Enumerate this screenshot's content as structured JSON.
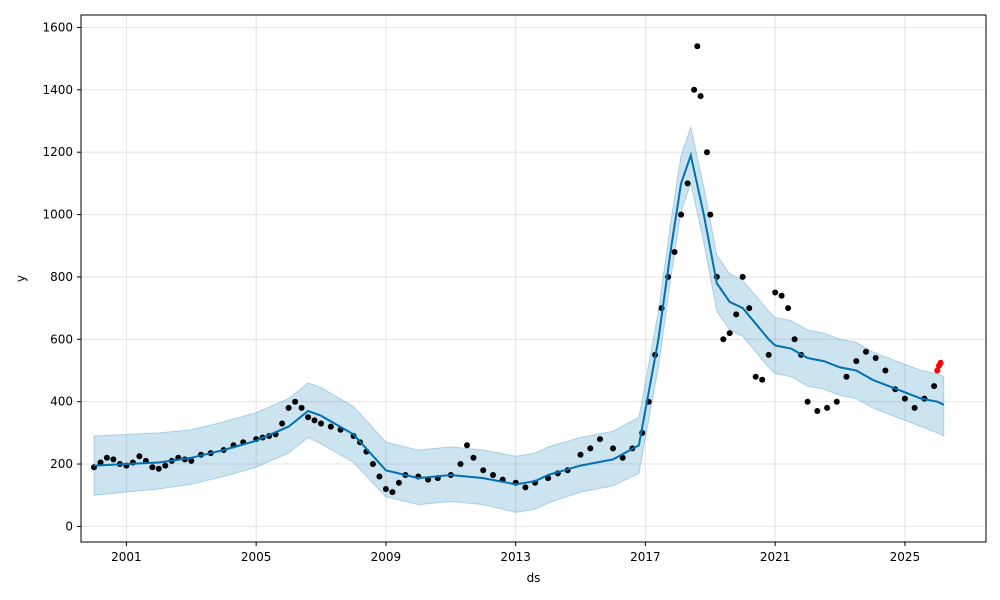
{
  "chart_data": {
    "type": "line",
    "title": "",
    "xlabel": "ds",
    "ylabel": "y",
    "xlim": [
      1999.6,
      2027.5
    ],
    "ylim": [
      -50,
      1640
    ],
    "x_ticks": [
      2001,
      2005,
      2009,
      2013,
      2017,
      2021,
      2025
    ],
    "x_tick_labels": [
      "2001",
      "2005",
      "2009",
      "2013",
      "2017",
      "2021",
      "2025"
    ],
    "y_ticks": [
      0,
      200,
      400,
      600,
      800,
      1000,
      1200,
      1400,
      1600
    ],
    "y_tick_labels": [
      "0",
      "200",
      "400",
      "600",
      "800",
      "1000",
      "1200",
      "1400",
      "1600"
    ],
    "grid": true,
    "colors": {
      "observed": "#000000",
      "forecast": "#0072B2",
      "interval": "#0072B2",
      "recent_observed": "#ff0000"
    },
    "series": [
      {
        "key": "observed",
        "kind": "scatter",
        "points": [
          [
            2000.0,
            190
          ],
          [
            2000.2,
            205
          ],
          [
            2000.4,
            220
          ],
          [
            2000.6,
            215
          ],
          [
            2000.8,
            200
          ],
          [
            2001.0,
            195
          ],
          [
            2001.2,
            205
          ],
          [
            2001.4,
            225
          ],
          [
            2001.6,
            210
          ],
          [
            2001.8,
            190
          ],
          [
            2002.0,
            185
          ],
          [
            2002.2,
            195
          ],
          [
            2002.4,
            210
          ],
          [
            2002.6,
            220
          ],
          [
            2002.8,
            215
          ],
          [
            2003.0,
            210
          ],
          [
            2003.3,
            230
          ],
          [
            2003.6,
            235
          ],
          [
            2004.0,
            245
          ],
          [
            2004.3,
            260
          ],
          [
            2004.6,
            270
          ],
          [
            2005.0,
            280
          ],
          [
            2005.2,
            285
          ],
          [
            2005.4,
            290
          ],
          [
            2005.6,
            295
          ],
          [
            2005.8,
            330
          ],
          [
            2006.0,
            380
          ],
          [
            2006.2,
            400
          ],
          [
            2006.4,
            380
          ],
          [
            2006.6,
            350
          ],
          [
            2006.8,
            340
          ],
          [
            2007.0,
            330
          ],
          [
            2007.3,
            320
          ],
          [
            2007.6,
            310
          ],
          [
            2008.0,
            290
          ],
          [
            2008.2,
            270
          ],
          [
            2008.4,
            240
          ],
          [
            2008.6,
            200
          ],
          [
            2008.8,
            160
          ],
          [
            2009.0,
            120
          ],
          [
            2009.2,
            110
          ],
          [
            2009.4,
            140
          ],
          [
            2009.6,
            165
          ],
          [
            2010.0,
            160
          ],
          [
            2010.3,
            150
          ],
          [
            2010.6,
            155
          ],
          [
            2011.0,
            165
          ],
          [
            2011.3,
            200
          ],
          [
            2011.5,
            260
          ],
          [
            2011.7,
            220
          ],
          [
            2012.0,
            180
          ],
          [
            2012.3,
            165
          ],
          [
            2012.6,
            150
          ],
          [
            2013.0,
            140
          ],
          [
            2013.3,
            125
          ],
          [
            2013.6,
            140
          ],
          [
            2014.0,
            155
          ],
          [
            2014.3,
            170
          ],
          [
            2014.6,
            180
          ],
          [
            2015.0,
            230
          ],
          [
            2015.3,
            250
          ],
          [
            2015.6,
            280
          ],
          [
            2016.0,
            250
          ],
          [
            2016.3,
            220
          ],
          [
            2016.6,
            250
          ],
          [
            2016.9,
            300
          ],
          [
            2017.1,
            400
          ],
          [
            2017.3,
            550
          ],
          [
            2017.5,
            700
          ],
          [
            2017.7,
            800
          ],
          [
            2017.9,
            880
          ],
          [
            2018.1,
            1000
          ],
          [
            2018.3,
            1100
          ],
          [
            2018.5,
            1400
          ],
          [
            2018.6,
            1540
          ],
          [
            2018.7,
            1380
          ],
          [
            2018.9,
            1200
          ],
          [
            2019.0,
            1000
          ],
          [
            2019.2,
            800
          ],
          [
            2019.4,
            600
          ],
          [
            2019.6,
            620
          ],
          [
            2019.8,
            680
          ],
          [
            2020.0,
            800
          ],
          [
            2020.2,
            700
          ],
          [
            2020.4,
            480
          ],
          [
            2020.6,
            470
          ],
          [
            2020.8,
            550
          ],
          [
            2021.0,
            750
          ],
          [
            2021.2,
            740
          ],
          [
            2021.4,
            700
          ],
          [
            2021.6,
            600
          ],
          [
            2021.8,
            550
          ],
          [
            2022.0,
            400
          ],
          [
            2022.3,
            370
          ],
          [
            2022.6,
            380
          ],
          [
            2022.9,
            400
          ],
          [
            2023.2,
            480
          ],
          [
            2023.5,
            530
          ],
          [
            2023.8,
            560
          ],
          [
            2024.1,
            540
          ],
          [
            2024.4,
            500
          ],
          [
            2024.7,
            440
          ],
          [
            2025.0,
            410
          ],
          [
            2025.3,
            380
          ],
          [
            2025.6,
            410
          ],
          [
            2025.9,
            450
          ]
        ]
      },
      {
        "key": "recent_observed",
        "kind": "scatter",
        "points": [
          [
            2026.0,
            500
          ],
          [
            2026.05,
            515
          ],
          [
            2026.1,
            525
          ]
        ]
      },
      {
        "key": "forecast",
        "kind": "line",
        "points": [
          [
            2000.0,
            195
          ],
          [
            2001.0,
            200
          ],
          [
            2002.0,
            205
          ],
          [
            2003.0,
            220
          ],
          [
            2004.0,
            245
          ],
          [
            2005.0,
            275
          ],
          [
            2006.0,
            320
          ],
          [
            2006.6,
            370
          ],
          [
            2007.0,
            355
          ],
          [
            2008.0,
            295
          ],
          [
            2009.0,
            180
          ],
          [
            2010.0,
            155
          ],
          [
            2011.0,
            165
          ],
          [
            2012.0,
            155
          ],
          [
            2013.0,
            135
          ],
          [
            2013.6,
            145
          ],
          [
            2014.0,
            165
          ],
          [
            2015.0,
            195
          ],
          [
            2016.0,
            215
          ],
          [
            2016.8,
            260
          ],
          [
            2017.4,
            600
          ],
          [
            2017.8,
            900
          ],
          [
            2018.1,
            1100
          ],
          [
            2018.4,
            1190
          ],
          [
            2018.8,
            1000
          ],
          [
            2019.2,
            780
          ],
          [
            2019.6,
            720
          ],
          [
            2020.0,
            700
          ],
          [
            2020.4,
            650
          ],
          [
            2020.8,
            600
          ],
          [
            2021.0,
            580
          ],
          [
            2021.5,
            570
          ],
          [
            2022.0,
            540
          ],
          [
            2022.5,
            530
          ],
          [
            2023.0,
            510
          ],
          [
            2023.5,
            500
          ],
          [
            2024.0,
            470
          ],
          [
            2024.5,
            450
          ],
          [
            2025.0,
            430
          ],
          [
            2025.5,
            410
          ],
          [
            2026.0,
            400
          ],
          [
            2026.2,
            390
          ]
        ]
      },
      {
        "key": "interval",
        "kind": "band",
        "lower": [
          [
            2000.0,
            100
          ],
          [
            2001.0,
            110
          ],
          [
            2002.0,
            120
          ],
          [
            2003.0,
            135
          ],
          [
            2004.0,
            160
          ],
          [
            2005.0,
            190
          ],
          [
            2006.0,
            235
          ],
          [
            2006.6,
            285
          ],
          [
            2007.0,
            265
          ],
          [
            2008.0,
            205
          ],
          [
            2009.0,
            95
          ],
          [
            2010.0,
            70
          ],
          [
            2011.0,
            80
          ],
          [
            2012.0,
            70
          ],
          [
            2013.0,
            45
          ],
          [
            2013.6,
            55
          ],
          [
            2014.0,
            75
          ],
          [
            2015.0,
            110
          ],
          [
            2016.0,
            130
          ],
          [
            2016.8,
            170
          ],
          [
            2017.4,
            510
          ],
          [
            2017.8,
            810
          ],
          [
            2018.1,
            1010
          ],
          [
            2018.4,
            1100
          ],
          [
            2018.8,
            910
          ],
          [
            2019.2,
            690
          ],
          [
            2019.6,
            630
          ],
          [
            2020.0,
            610
          ],
          [
            2020.4,
            560
          ],
          [
            2020.8,
            510
          ],
          [
            2021.0,
            490
          ],
          [
            2021.5,
            480
          ],
          [
            2022.0,
            450
          ],
          [
            2022.5,
            440
          ],
          [
            2023.0,
            420
          ],
          [
            2023.5,
            410
          ],
          [
            2024.0,
            380
          ],
          [
            2024.5,
            360
          ],
          [
            2025.0,
            340
          ],
          [
            2025.5,
            320
          ],
          [
            2026.0,
            300
          ],
          [
            2026.2,
            290
          ]
        ],
        "upper": [
          [
            2000.0,
            290
          ],
          [
            2001.0,
            295
          ],
          [
            2002.0,
            300
          ],
          [
            2003.0,
            310
          ],
          [
            2004.0,
            335
          ],
          [
            2005.0,
            365
          ],
          [
            2006.0,
            410
          ],
          [
            2006.6,
            460
          ],
          [
            2007.0,
            445
          ],
          [
            2008.0,
            385
          ],
          [
            2009.0,
            270
          ],
          [
            2010.0,
            245
          ],
          [
            2011.0,
            255
          ],
          [
            2012.0,
            245
          ],
          [
            2013.0,
            225
          ],
          [
            2013.6,
            235
          ],
          [
            2014.0,
            255
          ],
          [
            2015.0,
            285
          ],
          [
            2016.0,
            305
          ],
          [
            2016.8,
            350
          ],
          [
            2017.4,
            690
          ],
          [
            2017.8,
            990
          ],
          [
            2018.1,
            1190
          ],
          [
            2018.4,
            1280
          ],
          [
            2018.8,
            1090
          ],
          [
            2019.2,
            870
          ],
          [
            2019.6,
            810
          ],
          [
            2020.0,
            790
          ],
          [
            2020.4,
            740
          ],
          [
            2020.8,
            690
          ],
          [
            2021.0,
            670
          ],
          [
            2021.5,
            660
          ],
          [
            2022.0,
            630
          ],
          [
            2022.5,
            620
          ],
          [
            2023.0,
            600
          ],
          [
            2023.5,
            590
          ],
          [
            2024.0,
            560
          ],
          [
            2024.5,
            540
          ],
          [
            2025.0,
            520
          ],
          [
            2025.5,
            500
          ],
          [
            2026.0,
            490
          ],
          [
            2026.2,
            480
          ]
        ]
      }
    ]
  }
}
